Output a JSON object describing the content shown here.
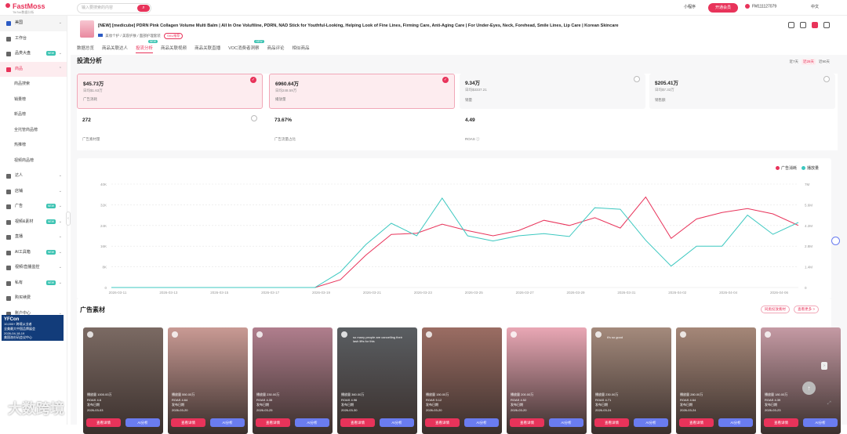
{
  "app": {
    "logo": "FastMoss",
    "logo_sub": "TikTok数据分析",
    "search_placeholder": "输入要搜索的内容",
    "mini": "小程序",
    "open_vip": "开通会员",
    "user": "FM111127079",
    "lang": "中文"
  },
  "sidebar": {
    "country": "美国",
    "items": [
      {
        "label": "工作台",
        "name": "workbench"
      },
      {
        "label": "品类大盘",
        "name": "category",
        "new": "NEW"
      },
      {
        "label": "商品",
        "name": "goods",
        "active": true
      },
      {
        "label": "商品搜索",
        "name": "goods-search",
        "sub": true
      },
      {
        "label": "销量榜",
        "name": "sales-rank",
        "sub": true
      },
      {
        "label": "新品榜",
        "name": "new-rank",
        "sub": true
      },
      {
        "label": "全托管商品榜",
        "name": "managed-rank",
        "sub": true
      },
      {
        "label": "热推榜",
        "name": "hot-rank",
        "sub": true
      },
      {
        "label": "视频商品榜",
        "name": "video-goods-rank",
        "sub": true
      },
      {
        "label": "达人",
        "name": "creators"
      },
      {
        "label": "店铺",
        "name": "shops"
      },
      {
        "label": "广告",
        "name": "ads",
        "new": "NEW"
      },
      {
        "label": "视频&素材",
        "name": "video-material",
        "new": "NEW"
      },
      {
        "label": "直播",
        "name": "live"
      },
      {
        "label": "AI工具箱",
        "name": "ai-tools",
        "new": "NEW"
      },
      {
        "label": "视频/直播监控",
        "name": "monitor"
      },
      {
        "label": "私有",
        "name": "private",
        "new": "NEW"
      },
      {
        "label": "购买续费",
        "name": "purchase"
      },
      {
        "label": "账户中心",
        "name": "account"
      }
    ],
    "banner": {
      "title": "YFCon",
      "line1": "10,000+ 跨境从业者",
      "line2": "全美最大中国品牌展会",
      "line3": "2026-04-18-19",
      "line4": "美国洛杉矶会议中心"
    }
  },
  "product": {
    "title": "[NEW] [medicube] PDRN Pink Collagen Volume Multi Balm | All In One Volufiline, PDRN, NAD Stick for Youthful-Looking, Helping Look of Fine Lines, Firming Care, Anti-Aging Care | For Under-Eyes, Neck, Forehead, Smile Lines, Lip Care | Korean Skincare",
    "meta": "美妆个护 / 美容护肤 / 面部护理套装",
    "sku_tag": "SKU推荐",
    "tabs": [
      {
        "label": "数据总览"
      },
      {
        "label": "商品关联达人"
      },
      {
        "label": "投流分析",
        "active": true,
        "new": "NEW"
      },
      {
        "label": "商品关联视频"
      },
      {
        "label": "商品关联直播"
      },
      {
        "label": "VOC消费者洞察",
        "new": "NEW"
      },
      {
        "label": "商品评论"
      },
      {
        "label": "相似商品"
      }
    ]
  },
  "section_title": "投流分析",
  "range": [
    "近7天",
    "近28天",
    "近90天"
  ],
  "range_active": 1,
  "metrics": [
    {
      "value": "$45.73万",
      "sub": "日均$1.63万",
      "label": "广告消耗",
      "selected": true
    },
    {
      "value": "6960.64万",
      "sub": "日均248.59万",
      "label": "播放量",
      "selected": true
    },
    {
      "value": "9.34万",
      "sub": "日均$3337.21",
      "label": "销量",
      "selected": false
    },
    {
      "value": "$205.41万",
      "sub": "日均$7.33万",
      "label": "销售额",
      "selected": false
    },
    {
      "value": "272",
      "sub": "",
      "label": "广告素材量",
      "selected": false,
      "row2": true
    },
    {
      "value": "73.67%",
      "sub": "",
      "label": "广告流量占比",
      "selected": false,
      "row2": true,
      "nocheck": true
    },
    {
      "value": "4.49",
      "sub": "",
      "label": "ROAS ⓘ",
      "selected": false,
      "row2": true,
      "nocheck": true
    }
  ],
  "chart_data": {
    "type": "line",
    "x": [
      "2026-03-11",
      "2026-03-12",
      "2026-03-13",
      "2026-03-14",
      "2026-03-15",
      "2026-03-16",
      "2026-03-17",
      "2026-03-18",
      "2026-03-19",
      "2026-03-20",
      "2026-03-21",
      "2026-03-22",
      "2026-03-23",
      "2026-03-24",
      "2026-03-25",
      "2026-03-26",
      "2026-03-27",
      "2026-03-28",
      "2026-03-29",
      "2026-03-30",
      "2026-03-31",
      "2026-04-01",
      "2026-04-02",
      "2026-04-03",
      "2026-04-04",
      "2026-04-05",
      "2026-04-06",
      "2026-04-07"
    ],
    "x_tick_labels": [
      "2026-03-11",
      "2026-03-13",
      "2026-03-15",
      "2026-03-17",
      "2026-03-19",
      "2026-03-21",
      "2026-03-23",
      "2026-03-25",
      "2026-03-27",
      "2026-03-29",
      "2026-03-31",
      "2026-04-02",
      "2026-04-04",
      "2026-04-06"
    ],
    "yleft_ticks": [
      "0",
      "8K",
      "16K",
      "24K",
      "32K",
      "40K"
    ],
    "yright_ticks": [
      "0",
      "1.4M",
      "2.8M",
      "4.2M",
      "5.6M",
      "7M"
    ],
    "yleft_lim": [
      0,
      40000
    ],
    "yright_lim": [
      0,
      7000000
    ],
    "series": [
      {
        "name": "广告消耗",
        "color": "#e8335a",
        "axis": "left",
        "values": [
          0,
          0,
          0,
          0,
          0,
          0,
          0,
          0,
          0,
          3000,
          12500,
          20500,
          21000,
          24500,
          22000,
          20000,
          22000,
          26000,
          24000,
          27000,
          23000,
          35000,
          19000,
          26500,
          29000,
          30500,
          28500,
          24000
        ]
      },
      {
        "name": "播放量",
        "color": "#3cc8c0",
        "axis": "right",
        "values": [
          0,
          0,
          0,
          0,
          0,
          0,
          0,
          0,
          0,
          1050000,
          2900000,
          4350000,
          3500000,
          6050000,
          3500000,
          3150000,
          3500000,
          3650000,
          3450000,
          5400000,
          5300000,
          3200000,
          1450000,
          2800000,
          2800000,
          4900000,
          3600000,
          4400000
        ]
      }
    ],
    "grid": true,
    "legend": "top-right"
  },
  "ads": {
    "title": "广告素材",
    "action1": "同类投放素材",
    "action2": "查看更多 >",
    "cards": [
      {
        "views": "播放量 1000.00万",
        "roas": "ROAS 4.6",
        "date_label": "发布日期",
        "date": "2026-03-03",
        "bg": "#7b6a63",
        "caption": ""
      },
      {
        "views": "播放量 550.00万",
        "roas": "ROAS 4.64",
        "date_label": "发布日期",
        "date": "2026-03-20",
        "bg": "#c99a94",
        "caption": ""
      },
      {
        "views": "播放量 230.00万",
        "roas": "ROAS 4.35",
        "date_label": "发布日期",
        "date": "2026-03-25",
        "bg": "#b07e8d",
        "caption": ""
      },
      {
        "views": "播放量 360.00万",
        "roas": "ROAS 4.96",
        "date_label": "发布日期",
        "date": "2026-03-30",
        "bg": "#5a5e62",
        "caption": "so many people are cancelling their lash lifts for this"
      },
      {
        "views": "播放量 150.00万",
        "roas": "ROAS 5.12",
        "date_label": "发布日期",
        "date": "2026-03-20",
        "bg": "#9b6d63",
        "caption": ""
      },
      {
        "views": "播放量 200.00万",
        "roas": "ROAS 4.52",
        "date_label": "发布日期",
        "date": "2026-03-20",
        "bg": "#e9a7b5",
        "caption": ""
      },
      {
        "views": "播放量 230.00万",
        "roas": "ROAS 4.71",
        "date_label": "发布日期",
        "date": "2026-03-24",
        "bg": "#a48a7c",
        "caption": "it's so good"
      },
      {
        "views": "播放量 280.00万",
        "roas": "ROAS 4.64",
        "date_label": "发布日期",
        "date": "2026-03-24",
        "bg": "#a58778",
        "caption": ""
      },
      {
        "views": "播放量 180.00万",
        "roas": "ROAS 4.39",
        "date_label": "发布日期",
        "date": "2026-03-23",
        "bg": "#c59aa4",
        "caption": ""
      }
    ],
    "btn_view": "查看详情",
    "btn_ai": "AI分析"
  },
  "watermark": "大数跨境"
}
